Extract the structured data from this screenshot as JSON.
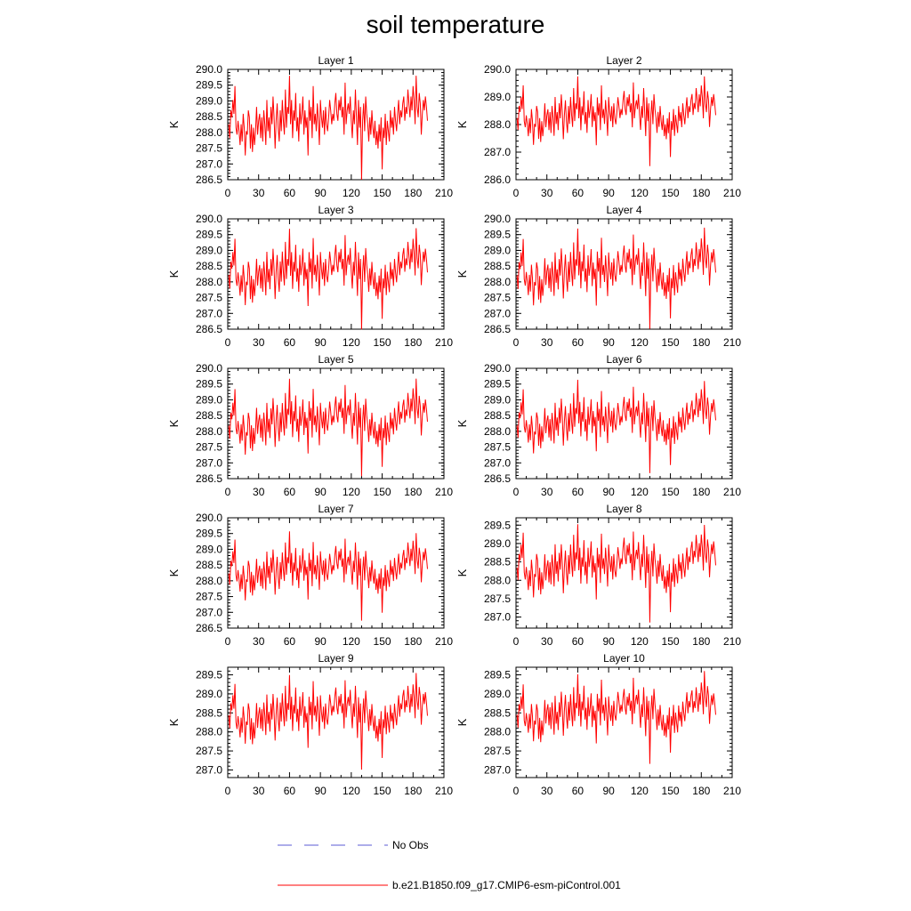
{
  "title": "soil temperature",
  "chart_data": [
    {
      "type": "line",
      "title": "Layer 1",
      "ylabel": "K",
      "xlim": [
        0,
        210
      ],
      "xticks": [
        0,
        30,
        60,
        90,
        120,
        150,
        180,
        210
      ],
      "ylim": [
        286.5,
        290.0
      ],
      "yticks": [
        "286.5",
        "287.0",
        "287.5",
        "288.0",
        "288.5",
        "289.0",
        "289.5",
        "290.0"
      ],
      "series": [
        {
          "name": "b.e21.B1850.f09_g17.CMIP6-esm-piControl.001",
          "x_start": 1,
          "y_min": 286.5,
          "y_max": 289.8,
          "values": []
        }
      ]
    },
    {
      "type": "line",
      "title": "Layer 2",
      "ylabel": "K",
      "xlim": [
        0,
        210
      ],
      "xticks": [
        0,
        30,
        60,
        90,
        120,
        150,
        180,
        210
      ],
      "ylim": [
        286.0,
        290.0
      ],
      "yticks": [
        "286.0",
        "287.0",
        "288.0",
        "289.0",
        "290.0"
      ],
      "series": [
        {
          "name": "b.e21.B1850.f09_g17.CMIP6-esm-piControl.001",
          "x_start": 1,
          "y_min": 286.5,
          "y_max": 289.75,
          "values": []
        }
      ]
    },
    {
      "type": "line",
      "title": "Layer 3",
      "ylabel": "K",
      "xlim": [
        0,
        210
      ],
      "xticks": [
        0,
        30,
        60,
        90,
        120,
        150,
        180,
        210
      ],
      "ylim": [
        286.5,
        290.0
      ],
      "yticks": [
        "286.5",
        "287.0",
        "287.5",
        "288.0",
        "288.5",
        "289.0",
        "289.5",
        "290.0"
      ],
      "series": [
        {
          "name": "b.e21.B1850.f09_g17.CMIP6-esm-piControl.001",
          "x_start": 1,
          "y_min": 286.5,
          "y_max": 289.7,
          "values": []
        }
      ]
    },
    {
      "type": "line",
      "title": "Layer 4",
      "ylabel": "K",
      "xlim": [
        0,
        210
      ],
      "xticks": [
        0,
        30,
        60,
        90,
        120,
        150,
        180,
        210
      ],
      "ylim": [
        286.5,
        290.0
      ],
      "yticks": [
        "286.5",
        "287.0",
        "287.5",
        "288.0",
        "288.5",
        "289.0",
        "289.5",
        "290.0"
      ],
      "series": [
        {
          "name": "b.e21.B1850.f09_g17.CMIP6-esm-piControl.001",
          "x_start": 1,
          "y_min": 286.5,
          "y_max": 289.7,
          "values": []
        }
      ]
    },
    {
      "type": "line",
      "title": "Layer 5",
      "ylabel": "K",
      "xlim": [
        0,
        210
      ],
      "xticks": [
        0,
        30,
        60,
        90,
        120,
        150,
        180,
        210
      ],
      "ylim": [
        286.5,
        290.0
      ],
      "yticks": [
        "286.5",
        "287.0",
        "287.5",
        "288.0",
        "288.5",
        "289.0",
        "289.5",
        "290.0"
      ],
      "series": [
        {
          "name": "b.e21.B1850.f09_g17.CMIP6-esm-piControl.001",
          "x_start": 1,
          "y_min": 286.55,
          "y_max": 289.65,
          "values": []
        }
      ]
    },
    {
      "type": "line",
      "title": "Layer 6",
      "ylabel": "K",
      "xlim": [
        0,
        210
      ],
      "xticks": [
        0,
        30,
        60,
        90,
        120,
        150,
        180,
        210
      ],
      "ylim": [
        286.5,
        290.0
      ],
      "yticks": [
        "286.5",
        "287.0",
        "287.5",
        "288.0",
        "288.5",
        "289.0",
        "289.5",
        "290.0"
      ],
      "series": [
        {
          "name": "b.e21.B1850.f09_g17.CMIP6-esm-piControl.001",
          "x_start": 1,
          "y_min": 286.65,
          "y_max": 289.6,
          "values": []
        }
      ]
    },
    {
      "type": "line",
      "title": "Layer 7",
      "ylabel": "K",
      "xlim": [
        0,
        210
      ],
      "xticks": [
        0,
        30,
        60,
        90,
        120,
        150,
        180,
        210
      ],
      "ylim": [
        286.5,
        290.0
      ],
      "yticks": [
        "286.5",
        "287.0",
        "287.5",
        "288.0",
        "288.5",
        "289.0",
        "289.5",
        "290.0"
      ],
      "series": [
        {
          "name": "b.e21.B1850.f09_g17.CMIP6-esm-piControl.001",
          "x_start": 1,
          "y_min": 286.75,
          "y_max": 289.55,
          "values": []
        }
      ]
    },
    {
      "type": "line",
      "title": "Layer 8",
      "ylabel": "K",
      "xlim": [
        0,
        210
      ],
      "xticks": [
        0,
        30,
        60,
        90,
        120,
        150,
        180,
        210
      ],
      "ylim": [
        286.7,
        289.7
      ],
      "yticks": [
        "287.0",
        "287.5",
        "288.0",
        "288.5",
        "289.0",
        "289.5"
      ],
      "series": [
        {
          "name": "b.e21.B1850.f09_g17.CMIP6-esm-piControl.001",
          "x_start": 1,
          "y_min": 286.9,
          "y_max": 289.55,
          "values": []
        }
      ]
    },
    {
      "type": "line",
      "title": "Layer 9",
      "ylabel": "K",
      "xlim": [
        0,
        210
      ],
      "xticks": [
        0,
        30,
        60,
        90,
        120,
        150,
        180,
        210
      ],
      "ylim": [
        286.8,
        289.7
      ],
      "yticks": [
        "287.0",
        "287.5",
        "288.0",
        "288.5",
        "289.0",
        "289.5"
      ],
      "series": [
        {
          "name": "b.e21.B1850.f09_g17.CMIP6-esm-piControl.001",
          "x_start": 1,
          "y_min": 287.05,
          "y_max": 289.55,
          "values": []
        }
      ]
    },
    {
      "type": "line",
      "title": "Layer 10",
      "ylabel": "K",
      "xlim": [
        0,
        210
      ],
      "xticks": [
        0,
        30,
        60,
        90,
        120,
        150,
        180,
        210
      ],
      "ylim": [
        286.8,
        289.7
      ],
      "yticks": [
        "287.0",
        "287.5",
        "288.0",
        "288.5",
        "289.0",
        "289.5"
      ],
      "series": [
        {
          "name": "b.e21.B1850.f09_g17.CMIP6-esm-piControl.001",
          "x_start": 1,
          "y_min": 287.15,
          "y_max": 289.55,
          "values": []
        }
      ]
    }
  ],
  "base_series": [
    288.2,
    287.8,
    288.6,
    288.4,
    288.9,
    288.5,
    289.3,
    288.1,
    287.9,
    288.3,
    288.0,
    287.6,
    288.2,
    287.7,
    288.5,
    288.1,
    287.3,
    288.0,
    287.9,
    288.6,
    288.4,
    287.5,
    288.2,
    287.4,
    288.1,
    287.6,
    288.0,
    288.7,
    287.9,
    288.3,
    288.5,
    287.8,
    288.4,
    287.7,
    288.6,
    288.2,
    287.6,
    288.9,
    288.0,
    288.4,
    287.8,
    288.7,
    288.2,
    289.0,
    288.4,
    287.5,
    288.3,
    288.8,
    288.1,
    287.7,
    288.6,
    288.0,
    288.9,
    288.3,
    287.9,
    289.2,
    288.1,
    288.7,
    288.5,
    289.6,
    288.2,
    288.9,
    287.8,
    288.6,
    288.3,
    289.1,
    288.0,
    288.4,
    287.7,
    288.8,
    288.2,
    288.5,
    289.0,
    287.9,
    288.6,
    288.1,
    288.4,
    287.3,
    288.9,
    288.3,
    288.7,
    287.8,
    289.3,
    288.2,
    288.5,
    288.0,
    288.8,
    288.3,
    287.6,
    288.9,
    288.4,
    288.1,
    288.6,
    287.9,
    288.7,
    288.2,
    288.0,
    288.4,
    288.9,
    288.6,
    288.2,
    288.5,
    288.3,
    288.8,
    289.1,
    288.5,
    288.3,
    288.9,
    288.6,
    289.0,
    288.4,
    288.7,
    287.9,
    289.4,
    288.2,
    288.6,
    288.8,
    288.5,
    289.0,
    288.3,
    287.8,
    288.6,
    288.2,
    289.2,
    288.4,
    287.6,
    288.9,
    288.1,
    288.7,
    286.6,
    288.3,
    288.8,
    288.0,
    289.0,
    288.5,
    288.2,
    287.7,
    288.4,
    287.9,
    288.6,
    288.1,
    287.8,
    288.3,
    287.6,
    288.0,
    287.5,
    288.2,
    287.7,
    288.4,
    286.9,
    288.1,
    287.8,
    288.5,
    287.6,
    288.3,
    288.0,
    287.7,
    288.6,
    288.1,
    288.4,
    287.9,
    288.7,
    288.3,
    288.0,
    288.5,
    288.9,
    288.2,
    288.6,
    288.4,
    288.8,
    289.0,
    288.3,
    288.7,
    288.5,
    289.2,
    288.8,
    288.4,
    289.0,
    288.6,
    289.3,
    288.9,
    288.2,
    289.6,
    288.7,
    288.4,
    289.1,
    288.8,
    287.9,
    288.5,
    288.9,
    288.6,
    289.0,
    288.7,
    288.3
  ],
  "legend": [
    {
      "label": "No Obs",
      "style": "dashed",
      "color": "#5b5bd6"
    },
    {
      "label": "b.e21.B1850.f09_g17.CMIP6-esm-piControl.001",
      "style": "solid",
      "color": "#ff0000"
    }
  ],
  "colors": {
    "series": "#ff0000",
    "obs": "#5b5bd6",
    "axis": "#000000"
  }
}
